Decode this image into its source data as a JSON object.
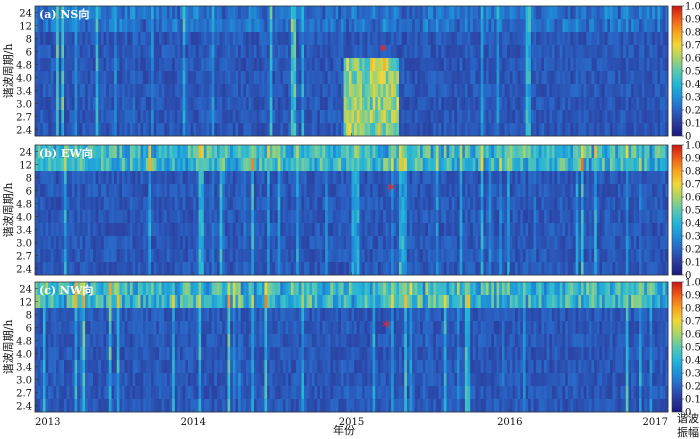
{
  "chart_data": [
    {
      "type": "heatmap",
      "title": "(a) NS向",
      "ylabel": "谐波周期/h",
      "y_ticks": [
        "24",
        "12",
        "8",
        "6",
        "4.8",
        "4.0",
        "3.4",
        "3.0",
        "2.7",
        "2.4"
      ],
      "x_ticks": [
        "2013",
        "2014",
        "2015",
        "2016",
        "2017"
      ],
      "xlim": [
        2013,
        2017
      ],
      "colorbar_ticks": [
        "1.0",
        "0.9",
        "0.8",
        "0.7",
        "0.6",
        "0.5",
        "0.4",
        "0.3",
        "0.2",
        "0.1",
        "0"
      ],
      "colorbar_range": [
        0,
        1
      ],
      "marker": {
        "symbol": "*",
        "x": 2015.2,
        "period": "6",
        "color": "#e8262a"
      },
      "features": [
        {
          "description": "elevated amplitude",
          "x_range": [
            2014.95,
            2015.3
          ],
          "period_range": [
            "4.8",
            "2.4"
          ],
          "level": 0.5
        }
      ]
    },
    {
      "type": "heatmap",
      "title": "(b) EW向",
      "ylabel": "谐波周期/h",
      "y_ticks": [
        "24",
        "12",
        "8",
        "6",
        "4.8",
        "4.0",
        "3.4",
        "3.0",
        "2.7",
        "2.4"
      ],
      "x_ticks": [
        "2013",
        "2014",
        "2015",
        "2016",
        "2017"
      ],
      "xlim": [
        2013,
        2017
      ],
      "colorbar_ticks": [
        "1.0",
        "0.9",
        "0.8",
        "0.7",
        "0.6",
        "0.5",
        "0.4",
        "0.3",
        "0.2",
        "0.1",
        "0"
      ],
      "colorbar_range": [
        0,
        1
      ],
      "marker": {
        "symbol": "*",
        "x": 2015.25,
        "period": "6",
        "color": "#e8262a"
      },
      "features": [
        {
          "description": "strong semidiurnal/diurnal band",
          "period_range": [
            "24",
            "12"
          ],
          "level": 0.45
        }
      ]
    },
    {
      "type": "heatmap",
      "title": "(c) NW向",
      "ylabel": "谐波周期/h",
      "y_ticks": [
        "24",
        "12",
        "8",
        "6",
        "4.8",
        "4.0",
        "3.4",
        "3.0",
        "2.7",
        "2.4"
      ],
      "x_ticks": [
        "2013",
        "2014",
        "2015",
        "2016",
        "2017"
      ],
      "xlim": [
        2013,
        2017
      ],
      "colorbar_ticks": [
        "1.0",
        "0.9",
        "0.8",
        "0.7",
        "0.6",
        "0.5",
        "0.4",
        "0.3",
        "0.2",
        "0.1",
        "0"
      ],
      "colorbar_range": [
        0,
        1
      ],
      "marker": {
        "symbol": "*",
        "x": 2015.22,
        "period": "6",
        "color": "#e8262a"
      },
      "features": [
        {
          "description": "strong semidiurnal/diurnal band",
          "period_range": [
            "24",
            "12"
          ],
          "level": 0.42
        }
      ]
    }
  ],
  "figure": {
    "xlabel": "年份",
    "colorbar_label": "谐波振幅"
  },
  "colors": {
    "background_low": "#2a3b8f",
    "colormap": "jet",
    "marker": "#e8262a"
  }
}
